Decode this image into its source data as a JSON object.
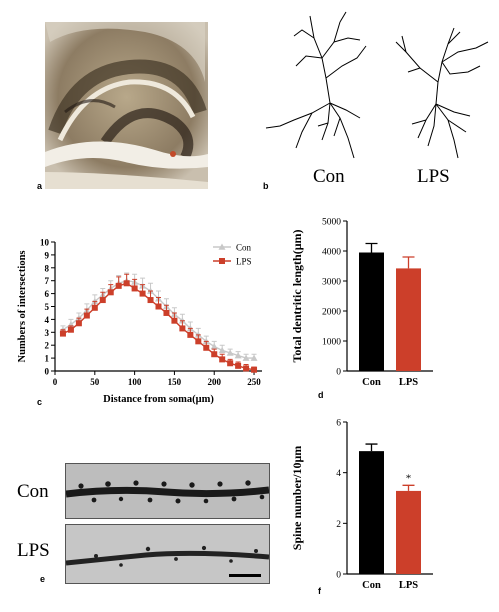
{
  "panels": {
    "a": {
      "letter": "a"
    },
    "b": {
      "letter": "b",
      "con_label": "Con",
      "lps_label": "LPS"
    },
    "c": {
      "letter": "c"
    },
    "d": {
      "letter": "d"
    },
    "e": {
      "letter": "e",
      "con_label": "Con",
      "lps_label": "LPS"
    },
    "f": {
      "letter": "f"
    }
  },
  "colors": {
    "con_line": "#c8c8c8",
    "lps_line": "#cc3f2a",
    "con_bar": "#000000",
    "lps_bar": "#cc3f2a"
  },
  "chart_data": [
    {
      "id": "c",
      "type": "line",
      "xlabel": "Distance from soma(μm)",
      "ylabel": "Numbers of intersections",
      "xlim": [
        0,
        260
      ],
      "ylim": [
        0,
        10
      ],
      "xticks": [
        0,
        50,
        100,
        150,
        200,
        250
      ],
      "yticks": [
        0,
        1,
        2,
        3,
        4,
        5,
        6,
        7,
        8,
        9,
        10
      ],
      "legend_position": "top-right",
      "series": [
        {
          "name": "Con",
          "marker": "triangle",
          "color": "#c8c8c8",
          "x": [
            10,
            20,
            30,
            40,
            50,
            60,
            70,
            80,
            90,
            100,
            110,
            120,
            130,
            140,
            150,
            160,
            170,
            180,
            190,
            200,
            210,
            220,
            230,
            240,
            250
          ],
          "y": [
            3.2,
            3.6,
            4.1,
            4.7,
            5.4,
            5.9,
            6.4,
            6.8,
            7.0,
            6.9,
            6.6,
            6.2,
            5.6,
            5.0,
            4.4,
            3.9,
            3.3,
            2.8,
            2.3,
            1.9,
            1.6,
            1.4,
            1.2,
            1.0,
            1.0
          ],
          "err": [
            0.3,
            0.4,
            0.4,
            0.5,
            0.5,
            0.5,
            0.6,
            0.6,
            0.6,
            0.6,
            0.6,
            0.6,
            0.6,
            0.6,
            0.5,
            0.5,
            0.5,
            0.5,
            0.4,
            0.4,
            0.4,
            0.3,
            0.3,
            0.3,
            0.3
          ]
        },
        {
          "name": "LPS",
          "marker": "square",
          "color": "#cc3f2a",
          "x": [
            10,
            20,
            30,
            40,
            50,
            60,
            70,
            80,
            90,
            100,
            110,
            120,
            130,
            140,
            150,
            160,
            170,
            180,
            190,
            200,
            210,
            220,
            230,
            240,
            250
          ],
          "y": [
            2.9,
            3.2,
            3.7,
            4.3,
            4.9,
            5.5,
            6.1,
            6.6,
            6.8,
            6.4,
            6.0,
            5.5,
            5.0,
            4.5,
            3.9,
            3.3,
            2.8,
            2.3,
            1.8,
            1.3,
            0.9,
            0.6,
            0.4,
            0.2,
            0.1
          ],
          "err": [
            0.3,
            0.3,
            0.4,
            0.5,
            0.5,
            0.6,
            0.6,
            0.7,
            0.7,
            0.7,
            0.7,
            0.7,
            0.7,
            0.6,
            0.6,
            0.6,
            0.5,
            0.5,
            0.5,
            0.4,
            0.4,
            0.3,
            0.3,
            0.3,
            0.2
          ]
        }
      ]
    },
    {
      "id": "d",
      "type": "bar",
      "categories": [
        "Con",
        "LPS"
      ],
      "values": [
        3950,
        3420
      ],
      "errors": [
        300,
        380
      ],
      "ylabel": "Total dentritic length(μm)",
      "ylim": [
        0,
        5000
      ],
      "yticks": [
        0,
        1000,
        2000,
        3000,
        4000,
        5000
      ]
    },
    {
      "id": "f",
      "type": "bar",
      "categories": [
        "Con",
        "LPS"
      ],
      "values": [
        4.85,
        3.28
      ],
      "errors": [
        0.28,
        0.22
      ],
      "ylabel": "Spine number/10μm",
      "ylim": [
        0,
        6
      ],
      "yticks": [
        0,
        2,
        4,
        6
      ],
      "annotations": [
        {
          "category": "LPS",
          "text": "*"
        }
      ]
    }
  ]
}
